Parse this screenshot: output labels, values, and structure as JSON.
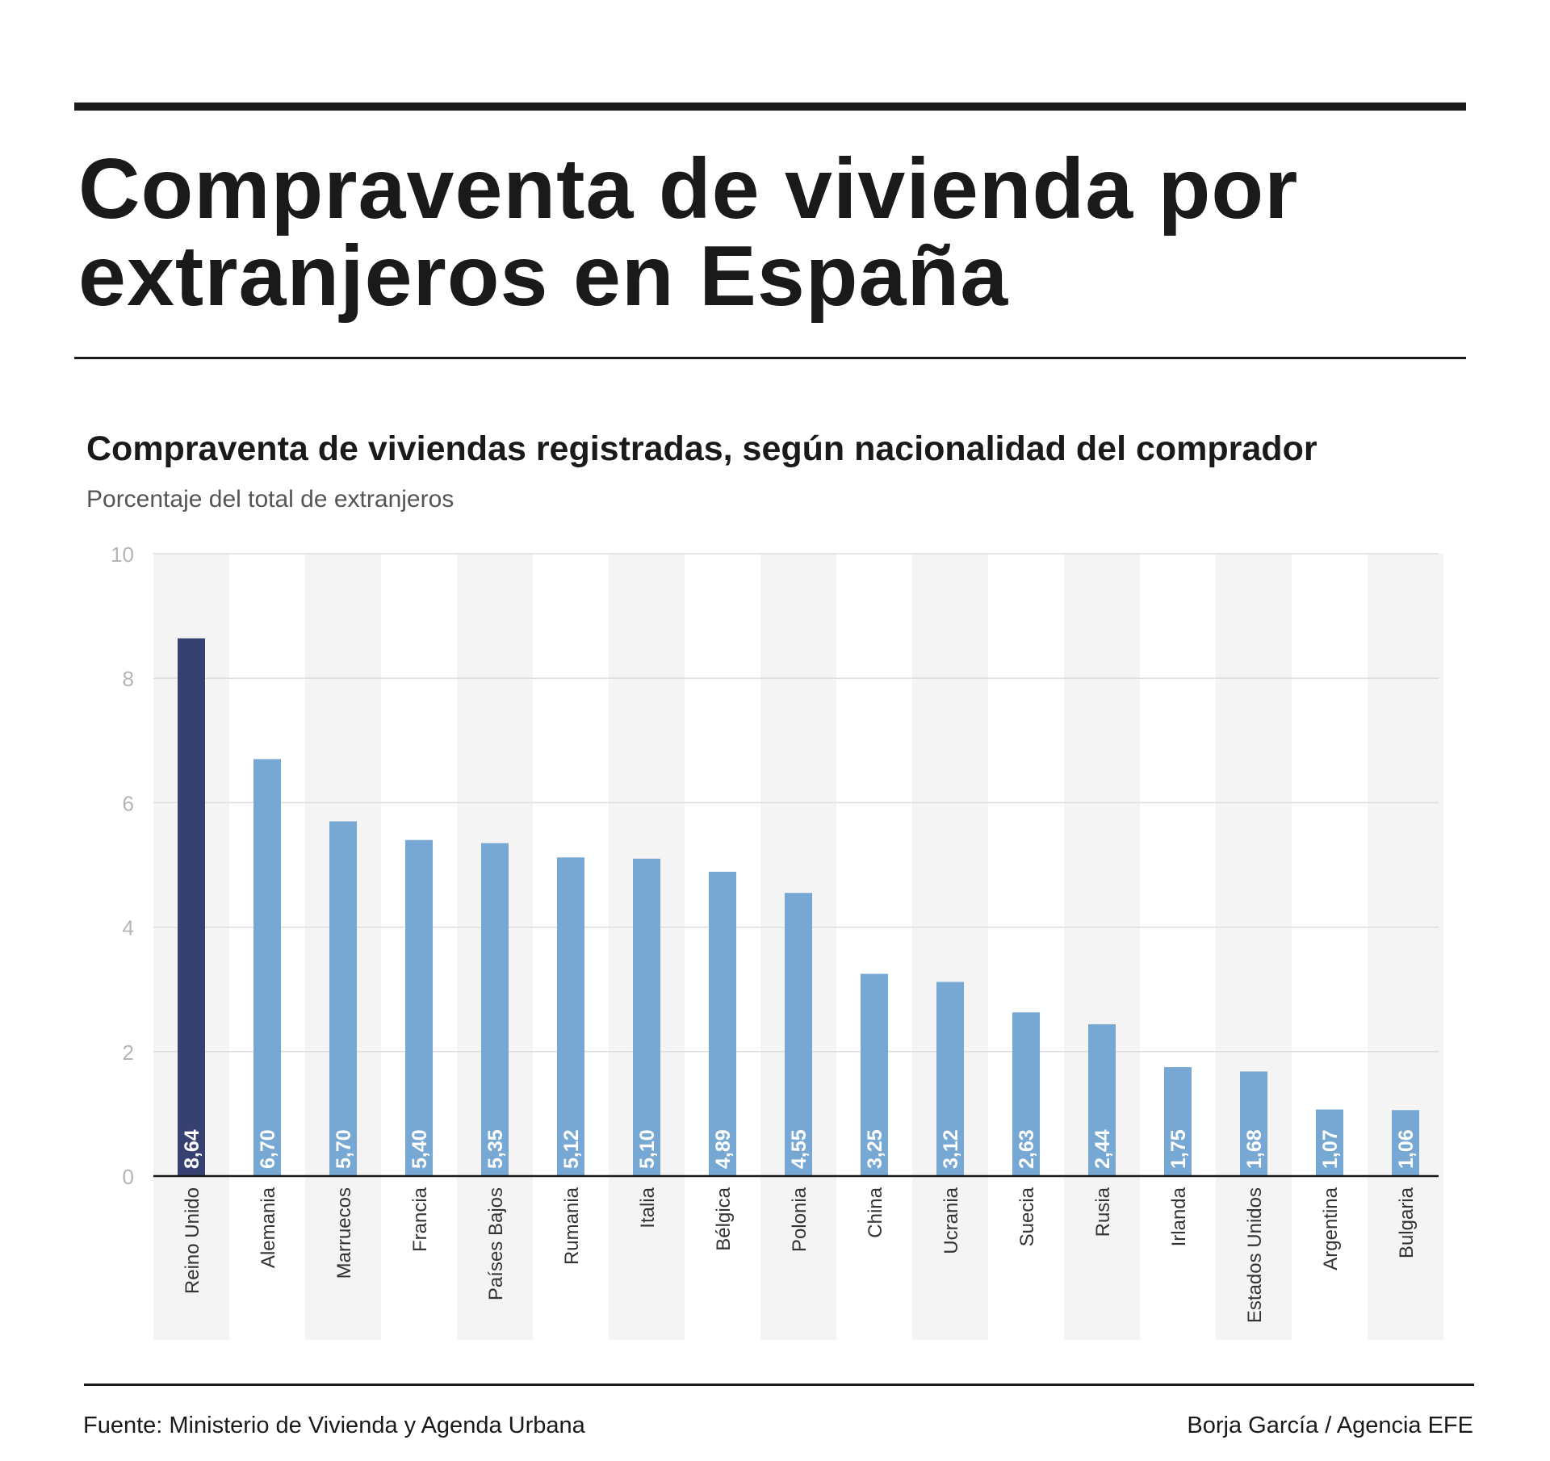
{
  "headline": "Compraventa de vivienda  por\nextranjeros en España",
  "footer": {
    "source": "Fuente: Ministerio de Vivienda y Agenda Urbana",
    "credit": "Borja García / Agencia EFE"
  },
  "chart_data": {
    "type": "bar",
    "title": "Compraventa de viviendas registradas, según nacionalidad del comprador",
    "subtitle": "Porcentaje del total de extranjeros",
    "categories": [
      "Reino Unido",
      "Alemania",
      "Marruecos",
      "Francia",
      "Países Bajos",
      "Rumania",
      "Italia",
      "Bélgica",
      "Polonia",
      "China",
      "Ucrania",
      "Suecia",
      "Rusia",
      "Irlanda",
      "Estados Unidos",
      "Argentina",
      "Bulgaria"
    ],
    "values": [
      8.64,
      6.7,
      5.7,
      5.4,
      5.35,
      5.12,
      5.1,
      4.89,
      4.55,
      3.25,
      3.12,
      2.63,
      2.44,
      1.75,
      1.68,
      1.07,
      1.06
    ],
    "value_labels": [
      "8,64",
      "6,70",
      "5,70",
      "5,40",
      "5,35",
      "5,12",
      "5,10",
      "4,89",
      "4,55",
      "3,25",
      "3,12",
      "2,63",
      "2,44",
      "1,75",
      "1,68",
      "1,07",
      "1,06"
    ],
    "ylim": [
      0,
      10
    ],
    "yticks": [
      0,
      2,
      4,
      6,
      8,
      10
    ],
    "grid": true,
    "highlight_color": "#374171",
    "bar_color": "#76a8d3",
    "band_color": "#f4f4f4"
  }
}
